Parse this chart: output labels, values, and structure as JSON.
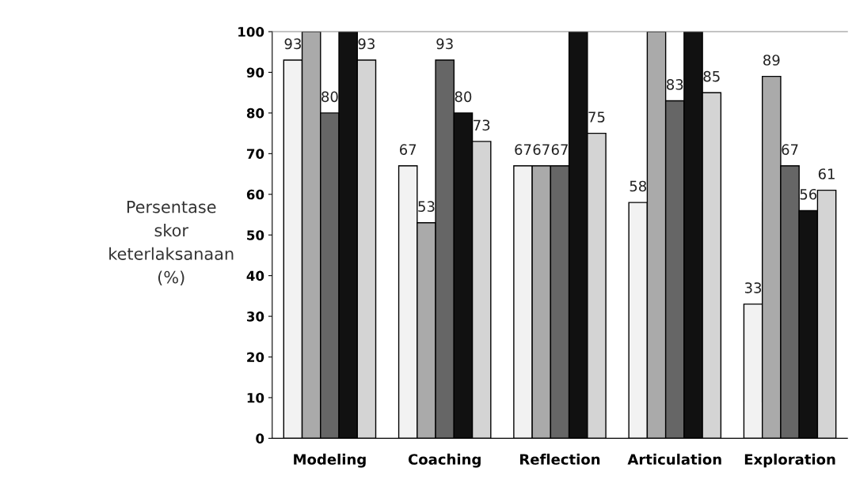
{
  "chart_data": {
    "type": "bar",
    "ylabel": "Persentase\nskor\nketerlaksanaan\n(%)",
    "categories": [
      "Modeling",
      "Coaching",
      "Reflection",
      "Articulation",
      "Exploration"
    ],
    "series": [
      {
        "color": "#f2f2f2",
        "values": [
          93,
          67,
          67,
          58,
          33
        ],
        "value_labels": [
          "93",
          "67",
          "67",
          "58",
          "33"
        ]
      },
      {
        "color": "#aaaaaa",
        "values": [
          100,
          53,
          67,
          100,
          89
        ],
        "value_labels": [
          null,
          "53",
          "67",
          null,
          "89"
        ]
      },
      {
        "color": "#666666",
        "values": [
          80,
          93,
          67,
          83,
          67
        ],
        "value_labels": [
          "80",
          "93",
          "67",
          "83",
          "67"
        ]
      },
      {
        "color": "#111111",
        "values": [
          100,
          80,
          100,
          100,
          56
        ],
        "value_labels": [
          null,
          "80",
          null,
          null,
          "56"
        ]
      },
      {
        "color": "#d4d4d4",
        "values": [
          93,
          73,
          75,
          85,
          61
        ],
        "value_labels": [
          "93",
          "73",
          "75",
          "85",
          "61"
        ]
      }
    ],
    "ylim": [
      0,
      100
    ],
    "yticks": [
      0,
      10,
      20,
      30,
      40,
      50,
      60,
      70,
      80,
      90,
      100
    ],
    "grid": false,
    "legend": false
  }
}
